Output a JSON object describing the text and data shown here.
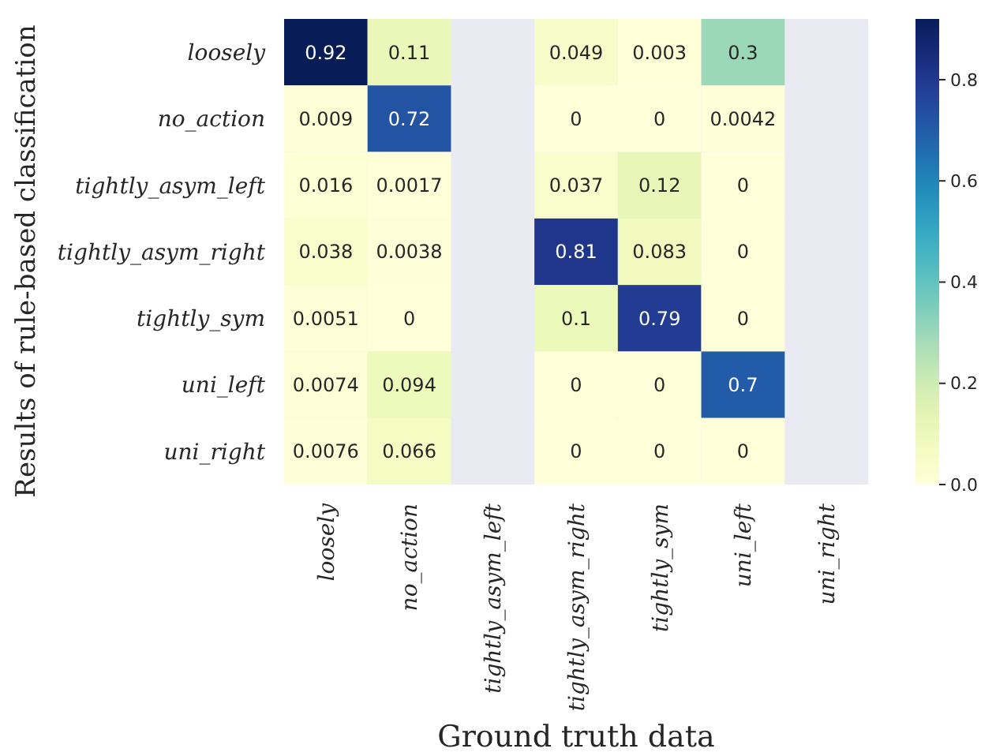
{
  "chart_data": {
    "type": "heatmap",
    "xlabel": "Ground truth data",
    "ylabel": "Results of rule-based classification",
    "categories": [
      "loosely",
      "no_action",
      "tightly_asym_left",
      "tightly_asym_right",
      "tightly_sym",
      "uni_left",
      "uni_right"
    ],
    "y_categories": [
      "loosely",
      "no_action",
      "tightly_asym_left",
      "tightly_asym_right",
      "tightly_sym",
      "uni_left",
      "uni_right"
    ],
    "cells": [
      [
        0.92,
        0.11,
        null,
        0.049,
        0.003,
        0.3,
        null
      ],
      [
        0.009,
        0.72,
        null,
        0,
        0,
        0.0042,
        null
      ],
      [
        0.016,
        0.0017,
        null,
        0.037,
        0.12,
        0,
        null
      ],
      [
        0.038,
        0.0038,
        null,
        0.81,
        0.083,
        0,
        null
      ],
      [
        0.0051,
        0,
        null,
        0.1,
        0.79,
        0,
        null
      ],
      [
        0.0074,
        0.094,
        null,
        0,
        0,
        0.7,
        null
      ],
      [
        0.0076,
        0.066,
        null,
        0,
        0,
        0,
        null
      ]
    ],
    "clim": [
      0,
      0.92
    ],
    "cticks": [
      {
        "value": 0,
        "label": "0.0"
      },
      {
        "value": 0.2,
        "label": "0.2"
      },
      {
        "value": 0.4,
        "label": "0.4"
      },
      {
        "value": 0.6,
        "label": "0.6"
      },
      {
        "value": 0.8,
        "label": "0.8"
      }
    ],
    "data_labels": true
  }
}
